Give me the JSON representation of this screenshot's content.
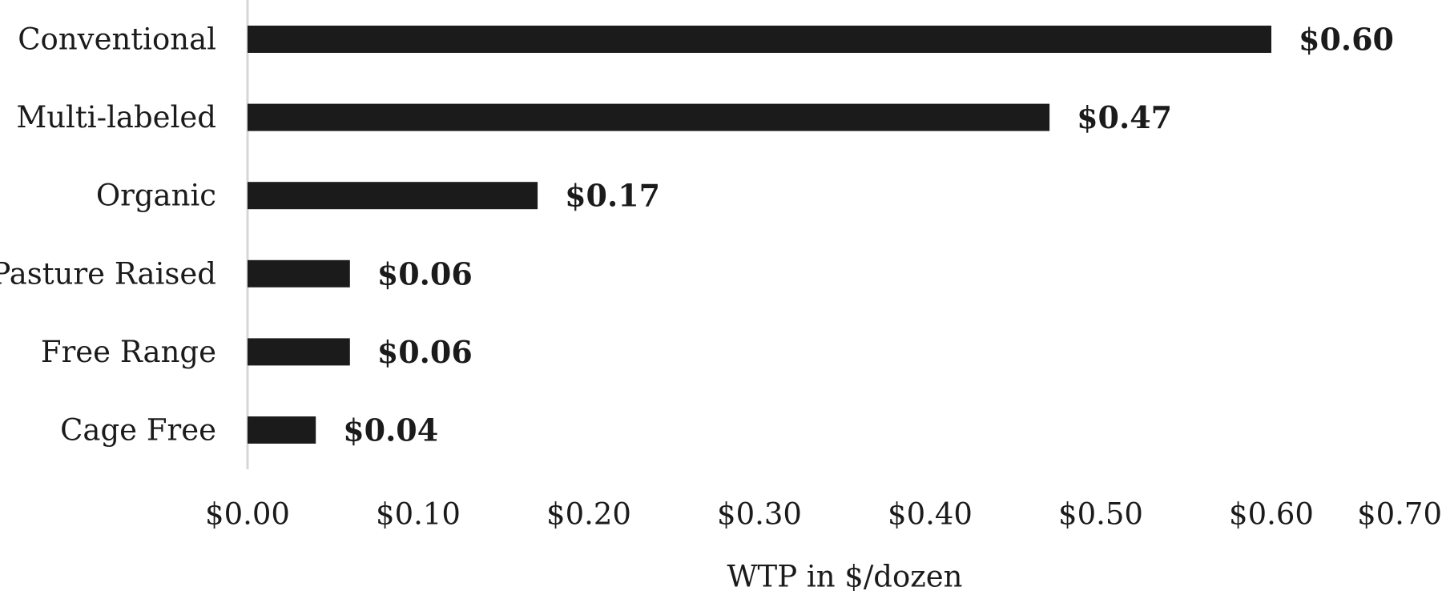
{
  "chart_data": {
    "type": "bar",
    "orientation": "horizontal",
    "categories": [
      "Conventional",
      "Multi-labeled",
      "Organic",
      "Pasture Raised",
      "Free Range",
      "Cage Free"
    ],
    "values": [
      0.6,
      0.47,
      0.17,
      0.06,
      0.06,
      0.04
    ],
    "value_labels": [
      "$0.60",
      "$0.47",
      "$0.17",
      "$0.06",
      "$0.06",
      "$0.04"
    ],
    "title": "",
    "xlabel": "WTP in $/dozen",
    "ylabel": "",
    "xlim": [
      0,
      0.7
    ],
    "x_ticks": [
      0,
      0.1,
      0.2,
      0.3,
      0.4,
      0.5,
      0.6,
      0.7
    ],
    "x_tick_labels": [
      "$0.00",
      "$0.10",
      "$0.20",
      "$0.30",
      "$0.40",
      "$0.50",
      "$0.60",
      "$0.70"
    ],
    "grid": false,
    "legend": "none",
    "bar_color": "#1b1b1b",
    "axis_color": "#d6d6d6"
  }
}
